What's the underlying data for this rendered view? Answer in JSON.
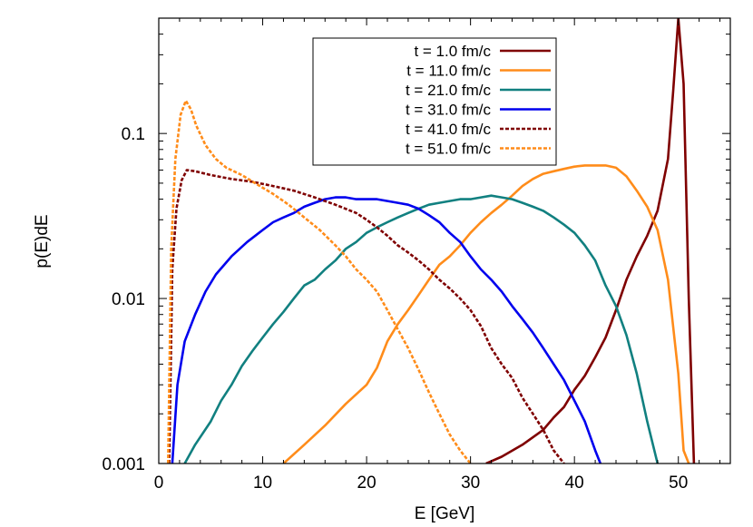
{
  "chart_data": {
    "type": "line",
    "title": "",
    "xlabel": "E [GeV]",
    "ylabel": "p(E)dE",
    "xlim": [
      0,
      55
    ],
    "ylim": [
      0.001,
      0.5
    ],
    "yscale": "log",
    "grid": false,
    "legend_position": "top-center",
    "x_ticks": [
      0,
      10,
      20,
      30,
      40,
      50
    ],
    "x_tick_labels": [
      "0",
      "10",
      "20",
      "30",
      "40",
      "50"
    ],
    "y_ticks": [
      0.001,
      0.01,
      0.1
    ],
    "y_tick_labels": [
      "0.001",
      "0.01",
      "0.1"
    ],
    "series": [
      {
        "name": "t = 1.0 fm/c",
        "color": "#7f0000",
        "dash": "solid",
        "points": [
          [
            31.5,
            0.001
          ],
          [
            33,
            0.0011
          ],
          [
            35,
            0.0013
          ],
          [
            37,
            0.0016
          ],
          [
            38,
            0.0019
          ],
          [
            39,
            0.0022
          ],
          [
            40,
            0.0028
          ],
          [
            41,
            0.0034
          ],
          [
            42,
            0.0044
          ],
          [
            43,
            0.0058
          ],
          [
            44,
            0.0085
          ],
          [
            45,
            0.013
          ],
          [
            46,
            0.018
          ],
          [
            47,
            0.024
          ],
          [
            48,
            0.034
          ],
          [
            49,
            0.07
          ],
          [
            49.5,
            0.18
          ],
          [
            50,
            0.5
          ],
          [
            50.5,
            0.2
          ],
          [
            51,
            0.01
          ],
          [
            51.5,
            0.001
          ]
        ]
      },
      {
        "name": "t = 11.0 fm/c",
        "color": "#ff8c1a",
        "dash": "solid",
        "points": [
          [
            12,
            0.001
          ],
          [
            14,
            0.0013
          ],
          [
            16,
            0.0017
          ],
          [
            18,
            0.0023
          ],
          [
            20,
            0.003
          ],
          [
            21,
            0.0038
          ],
          [
            22,
            0.0055
          ],
          [
            23,
            0.007
          ],
          [
            24,
            0.0085
          ],
          [
            25,
            0.0105
          ],
          [
            26,
            0.013
          ],
          [
            27,
            0.016
          ],
          [
            28,
            0.018
          ],
          [
            29,
            0.021
          ],
          [
            30,
            0.025
          ],
          [
            31,
            0.029
          ],
          [
            32,
            0.033
          ],
          [
            33,
            0.037
          ],
          [
            34,
            0.042
          ],
          [
            35,
            0.048
          ],
          [
            36,
            0.053
          ],
          [
            37,
            0.057
          ],
          [
            38,
            0.059
          ],
          [
            39,
            0.061
          ],
          [
            40,
            0.063
          ],
          [
            41,
            0.064
          ],
          [
            42,
            0.064
          ],
          [
            43,
            0.064
          ],
          [
            44,
            0.062
          ],
          [
            45,
            0.055
          ],
          [
            46,
            0.045
          ],
          [
            47,
            0.036
          ],
          [
            48,
            0.026
          ],
          [
            49,
            0.013
          ],
          [
            50,
            0.0035
          ],
          [
            50.5,
            0.0012
          ],
          [
            51,
            0.001
          ]
        ]
      },
      {
        "name": "t = 21.0 fm/c",
        "color": "#118080",
        "dash": "solid",
        "points": [
          [
            2.5,
            0.001
          ],
          [
            3.5,
            0.0013
          ],
          [
            5,
            0.0018
          ],
          [
            6,
            0.0024
          ],
          [
            7,
            0.003
          ],
          [
            8,
            0.0039
          ],
          [
            9,
            0.0048
          ],
          [
            10,
            0.0058
          ],
          [
            11,
            0.007
          ],
          [
            12,
            0.0083
          ],
          [
            13,
            0.01
          ],
          [
            14,
            0.012
          ],
          [
            15,
            0.013
          ],
          [
            16,
            0.015
          ],
          [
            17,
            0.017
          ],
          [
            18,
            0.02
          ],
          [
            19,
            0.022
          ],
          [
            20,
            0.025
          ],
          [
            21,
            0.027
          ],
          [
            22,
            0.029
          ],
          [
            23,
            0.031
          ],
          [
            24,
            0.033
          ],
          [
            25,
            0.035
          ],
          [
            26,
            0.037
          ],
          [
            27,
            0.038
          ],
          [
            28,
            0.039
          ],
          [
            29,
            0.04
          ],
          [
            30,
            0.04
          ],
          [
            31,
            0.041
          ],
          [
            32,
            0.042
          ],
          [
            33,
            0.041
          ],
          [
            34,
            0.04
          ],
          [
            35,
            0.038
          ],
          [
            36,
            0.036
          ],
          [
            37,
            0.034
          ],
          [
            38,
            0.031
          ],
          [
            39,
            0.028
          ],
          [
            40,
            0.025
          ],
          [
            41,
            0.021
          ],
          [
            42,
            0.017
          ],
          [
            43,
            0.012
          ],
          [
            44,
            0.009
          ],
          [
            45,
            0.006
          ],
          [
            46,
            0.0035
          ],
          [
            47,
            0.0018
          ],
          [
            48,
            0.001
          ]
        ]
      },
      {
        "name": "t = 31.0 fm/c",
        "color": "#0000ee",
        "dash": "solid",
        "points": [
          [
            1.3,
            0.001
          ],
          [
            1.8,
            0.003
          ],
          [
            2.5,
            0.0055
          ],
          [
            3.5,
            0.008
          ],
          [
            4.5,
            0.011
          ],
          [
            5.5,
            0.014
          ],
          [
            7,
            0.018
          ],
          [
            8.5,
            0.022
          ],
          [
            10,
            0.026
          ],
          [
            11,
            0.029
          ],
          [
            12,
            0.031
          ],
          [
            13,
            0.033
          ],
          [
            14,
            0.036
          ],
          [
            15,
            0.038
          ],
          [
            16,
            0.04
          ],
          [
            17,
            0.041
          ],
          [
            18,
            0.041
          ],
          [
            19,
            0.04
          ],
          [
            20,
            0.04
          ],
          [
            21,
            0.04
          ],
          [
            22,
            0.039
          ],
          [
            23,
            0.038
          ],
          [
            24,
            0.037
          ],
          [
            25,
            0.035
          ],
          [
            26,
            0.032
          ],
          [
            27,
            0.029
          ],
          [
            28,
            0.025
          ],
          [
            29,
            0.022
          ],
          [
            30,
            0.018
          ],
          [
            31,
            0.015
          ],
          [
            32,
            0.013
          ],
          [
            33,
            0.011
          ],
          [
            34,
            0.009
          ],
          [
            35,
            0.0075
          ],
          [
            36,
            0.0062
          ],
          [
            37,
            0.005
          ],
          [
            38,
            0.004
          ],
          [
            39,
            0.0032
          ],
          [
            40,
            0.0024
          ],
          [
            41,
            0.0018
          ],
          [
            42,
            0.0012
          ],
          [
            42.5,
            0.001
          ]
        ]
      },
      {
        "name": "t = 41.0 fm/c",
        "color": "#7f0000",
        "dash": "dashed",
        "points": [
          [
            1,
            0.001
          ],
          [
            1.3,
            0.015
          ],
          [
            1.7,
            0.035
          ],
          [
            2.2,
            0.052
          ],
          [
            2.7,
            0.06
          ],
          [
            3.5,
            0.059
          ],
          [
            5,
            0.056
          ],
          [
            7,
            0.053
          ],
          [
            9,
            0.051
          ],
          [
            11,
            0.048
          ],
          [
            13,
            0.045
          ],
          [
            15,
            0.041
          ],
          [
            17,
            0.037
          ],
          [
            19,
            0.033
          ],
          [
            20,
            0.03
          ],
          [
            21,
            0.027
          ],
          [
            22,
            0.024
          ],
          [
            23,
            0.021
          ],
          [
            24,
            0.019
          ],
          [
            25,
            0.017
          ],
          [
            26,
            0.015
          ],
          [
            27,
            0.013
          ],
          [
            28,
            0.0115
          ],
          [
            29,
            0.01
          ],
          [
            30,
            0.0085
          ],
          [
            31,
            0.0068
          ],
          [
            32,
            0.005
          ],
          [
            33,
            0.004
          ],
          [
            34,
            0.0033
          ],
          [
            35,
            0.0025
          ],
          [
            36,
            0.002
          ],
          [
            37,
            0.0016
          ],
          [
            38,
            0.0012
          ],
          [
            39,
            0.001
          ]
        ]
      },
      {
        "name": "t = 51.0 fm/c",
        "color": "#ff8c1a",
        "dash": "dashed",
        "points": [
          [
            0.9,
            0.001
          ],
          [
            1.2,
            0.02
          ],
          [
            1.6,
            0.07
          ],
          [
            2.1,
            0.13
          ],
          [
            2.6,
            0.158
          ],
          [
            3.1,
            0.14
          ],
          [
            3.6,
            0.112
          ],
          [
            4.5,
            0.085
          ],
          [
            5.5,
            0.07
          ],
          [
            6.5,
            0.062
          ],
          [
            8,
            0.056
          ],
          [
            9.5,
            0.049
          ],
          [
            11,
            0.043
          ],
          [
            12.5,
            0.037
          ],
          [
            14,
            0.031
          ],
          [
            15.5,
            0.026
          ],
          [
            17,
            0.021
          ],
          [
            18,
            0.018
          ],
          [
            19,
            0.015
          ],
          [
            20,
            0.013
          ],
          [
            21,
            0.011
          ],
          [
            22,
            0.0085
          ],
          [
            23,
            0.0065
          ],
          [
            24,
            0.005
          ],
          [
            25,
            0.0037
          ],
          [
            26,
            0.0027
          ],
          [
            27,
            0.002
          ],
          [
            28,
            0.0015
          ],
          [
            29,
            0.0012
          ],
          [
            30,
            0.001
          ]
        ]
      }
    ]
  }
}
